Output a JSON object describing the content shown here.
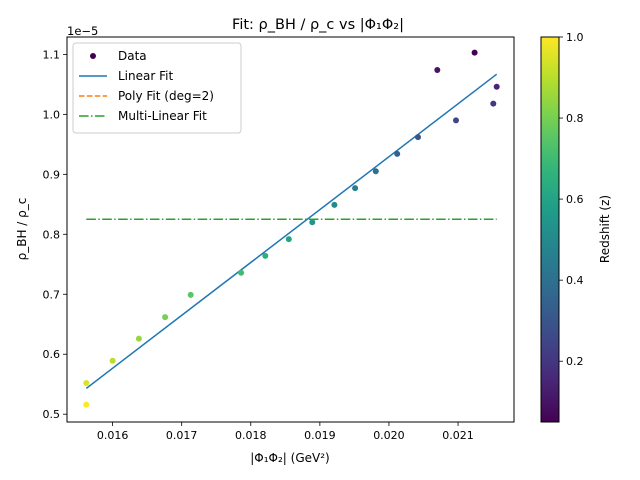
{
  "chart_data": {
    "type": "scatter",
    "title": "Fit: ρ_BH / ρ_c vs |Φ₁Φ₂|",
    "xlabel": "|Φ₁Φ₂| (GeV²)",
    "ylabel": "ρ_BH / ρ_c",
    "y_offset_text": "1e−5",
    "xlim": [
      0.01534,
      0.02181
    ],
    "ylim": [
      0.487,
      1.129
    ],
    "x_ticks": [
      0.016,
      0.017,
      0.018,
      0.019,
      0.02,
      0.021
    ],
    "x_tick_labels": [
      "0.016",
      "0.017",
      "0.018",
      "0.019",
      "0.020",
      "0.021"
    ],
    "y_ticks": [
      0.5,
      0.6,
      0.7,
      0.8,
      0.9,
      1.0,
      1.1
    ],
    "y_tick_labels": [
      "0.5",
      "0.6",
      "0.7",
      "0.8",
      "0.9",
      "1.0",
      "1.1"
    ],
    "grid": false,
    "legend_position": "top-left",
    "legend": [
      {
        "label": "Data",
        "style": "marker",
        "color": "#440154"
      },
      {
        "label": "Linear Fit",
        "style": "solid",
        "color": "#1f77b4"
      },
      {
        "label": "Poly Fit (deg=2)",
        "style": "dashed",
        "color": "#ff7f0e"
      },
      {
        "label": "Multi-Linear Fit",
        "style": "dashdot",
        "color": "#2ca02c"
      }
    ],
    "series": [
      {
        "name": "Data",
        "kind": "scatter",
        "color_by": "Redshift (z)",
        "points": [
          {
            "x": 0.01562,
            "y": 0.516,
            "z": 1.0
          },
          {
            "x": 0.01562,
            "y": 0.552,
            "z": 0.95
          },
          {
            "x": 0.016,
            "y": 0.589,
            "z": 0.9
          },
          {
            "x": 0.01638,
            "y": 0.626,
            "z": 0.85
          },
          {
            "x": 0.01676,
            "y": 0.662,
            "z": 0.8
          },
          {
            "x": 0.01713,
            "y": 0.699,
            "z": 0.75
          },
          {
            "x": 0.01786,
            "y": 0.736,
            "z": 0.7
          },
          {
            "x": 0.01821,
            "y": 0.764,
            "z": 0.65
          },
          {
            "x": 0.01855,
            "y": 0.792,
            "z": 0.6
          },
          {
            "x": 0.01889,
            "y": 0.82,
            "z": 0.55
          },
          {
            "x": 0.01921,
            "y": 0.849,
            "z": 0.5
          },
          {
            "x": 0.01951,
            "y": 0.877,
            "z": 0.45
          },
          {
            "x": 0.01981,
            "y": 0.905,
            "z": 0.4
          },
          {
            "x": 0.02012,
            "y": 0.934,
            "z": 0.35
          },
          {
            "x": 0.02042,
            "y": 0.962,
            "z": 0.3
          },
          {
            "x": 0.0207,
            "y": 1.074,
            "z": 0.1
          },
          {
            "x": 0.02097,
            "y": 0.99,
            "z": 0.25
          },
          {
            "x": 0.02124,
            "y": 1.103,
            "z": 0.05
          },
          {
            "x": 0.02151,
            "y": 1.018,
            "z": 0.2
          },
          {
            "x": 0.02156,
            "y": 1.046,
            "z": 0.15
          }
        ]
      },
      {
        "name": "Linear Fit",
        "kind": "line",
        "color": "#1f77b4",
        "dash": "solid",
        "x": [
          0.01562,
          0.02156
        ],
        "y": [
          0.543,
          1.067
        ]
      },
      {
        "name": "Multi-Linear Fit",
        "kind": "line",
        "color": "#2ca02c",
        "dash": "dashdot",
        "x": [
          0.01562,
          0.02156
        ],
        "y": [
          0.825,
          0.825
        ]
      }
    ],
    "colorbar": {
      "label": "Redshift (z)",
      "range": [
        0.05,
        1.0
      ],
      "ticks": [
        0.2,
        0.4,
        0.6,
        0.8,
        1.0
      ],
      "tick_labels": [
        "0.2",
        "0.4",
        "0.6",
        "0.8",
        "1.0"
      ],
      "colormap": "viridis"
    }
  }
}
